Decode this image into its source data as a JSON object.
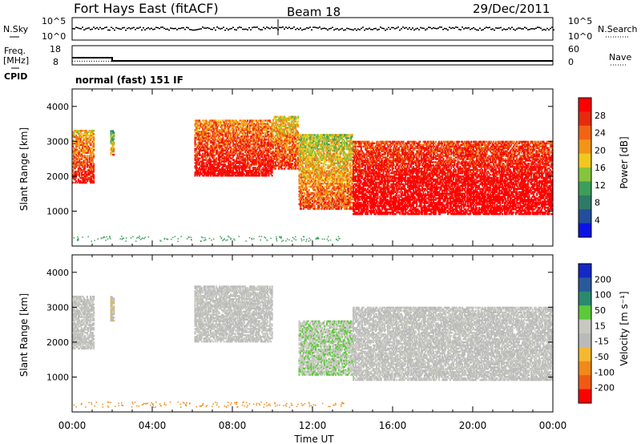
{
  "header": {
    "station": "Fort Hays East (fitACF)",
    "beam": "Beam 18",
    "date": "29/Dec/2011"
  },
  "noise_panel": {
    "left_label": "N.Sky",
    "right_label": "N.Search",
    "left_ticks": [
      "10^5",
      "10^0"
    ],
    "right_ticks": [
      "10^5",
      "10^0"
    ]
  },
  "freq_panel": {
    "left_label": "Freq.",
    "left_unit": "[MHz]",
    "right_label": "Nave",
    "left_ticks": [
      "18",
      "8"
    ],
    "right_ticks": [
      "60",
      "0"
    ],
    "freq_step_hours": [
      0,
      1.0,
      2.0,
      14.0,
      24.0
    ],
    "freq_values_mhz": [
      12.5,
      12.5,
      10.5,
      10.5,
      12.5
    ],
    "nave_values": [
      14,
      14,
      14,
      14,
      14
    ]
  },
  "cpid": {
    "label": "CPID",
    "mode": "normal (fast) 151 IF"
  },
  "colors": {
    "power": [
      "#0a14e6",
      "#234e9c",
      "#2f7a66",
      "#3d9e5a",
      "#86c43c",
      "#f2c81e",
      "#f39418",
      "#f26414",
      "#e62a0e",
      "#ff0000"
    ],
    "velocity": [
      "#1428c8",
      "#2a5a9a",
      "#2a8a70",
      "#5cc83a",
      "#c8c8c0",
      "#bababa",
      "#f5b830",
      "#f08a18",
      "#f05a14",
      "#ff0000"
    ],
    "step_line": "#000000"
  },
  "chart_data": [
    {
      "type": "heatmap",
      "title": "Power",
      "ylabel": "Slant Range [km]",
      "xlabel": "",
      "ylim": [
        0,
        4500
      ],
      "y_ticks": [
        "1000",
        "2000",
        "3000",
        "4000"
      ],
      "colorbar": {
        "label": "Power [dB]",
        "ticks": [
          "28",
          "24",
          "20",
          "16",
          "12",
          "8",
          "4"
        ],
        "range": [
          0,
          30
        ]
      },
      "echo_regions": [
        {
          "t_start": 0.0,
          "t_end": 1.1,
          "range_low_km": 1800,
          "range_high_km": 3300,
          "value": 18
        },
        {
          "t_start": 1.9,
          "t_end": 2.1,
          "range_low_km": 2600,
          "range_high_km": 3300,
          "value": 10
        },
        {
          "t_start": 6.1,
          "t_end": 10.0,
          "range_low_km": 2000,
          "range_high_km": 3600,
          "value": 20
        },
        {
          "t_start": 10.0,
          "t_end": 11.3,
          "range_low_km": 2200,
          "range_high_km": 3700,
          "value": 16
        },
        {
          "t_start": 11.3,
          "t_end": 14.0,
          "range_low_km": 1050,
          "range_high_km": 3200,
          "value": 14
        },
        {
          "t_start": 14.0,
          "t_end": 24.0,
          "range_low_km": 900,
          "range_high_km": 3000,
          "value": 24
        }
      ]
    },
    {
      "type": "heatmap",
      "title": "Velocity",
      "ylabel": "Slant Range [km]",
      "xlabel": "Time UT",
      "ylim": [
        0,
        4500
      ],
      "y_ticks": [
        "1000",
        "2000",
        "3000",
        "4000"
      ],
      "x_ticks": [
        "00:00",
        "04:00",
        "08:00",
        "12:00",
        "16:00",
        "20:00",
        "00:00"
      ],
      "colorbar": {
        "label": "Velocity [m s⁻¹]",
        "ticks": [
          "200",
          "100",
          "50",
          "15",
          "-15",
          "-50",
          "-100",
          "-200"
        ],
        "range": [
          -250,
          250
        ]
      },
      "echo_regions": [
        {
          "t_start": 0.0,
          "t_end": 1.1,
          "range_low_km": 1800,
          "range_high_km": 3300,
          "value": 0
        },
        {
          "t_start": 1.9,
          "t_end": 2.1,
          "range_low_km": 2600,
          "range_high_km": 3300,
          "value": -40
        },
        {
          "t_start": 6.1,
          "t_end": 10.0,
          "range_low_km": 2000,
          "range_high_km": 3600,
          "value": 0
        },
        {
          "t_start": 11.3,
          "t_end": 14.0,
          "range_low_km": 1050,
          "range_high_km": 2600,
          "value": 40
        },
        {
          "t_start": 14.0,
          "t_end": 24.0,
          "range_low_km": 900,
          "range_high_km": 3000,
          "value": 0
        }
      ]
    }
  ]
}
